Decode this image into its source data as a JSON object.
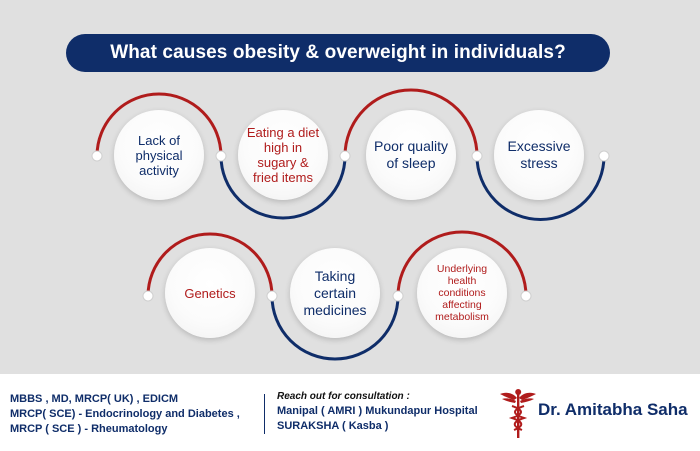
{
  "header": {
    "title": "What causes obesity & overweight in individuals?"
  },
  "causes": [
    {
      "label": "Lack of physical activity",
      "color": "#0f2d69"
    },
    {
      "label": "Eating a diet high in sugary & fried items",
      "color": "#b01c1c"
    },
    {
      "label": "Poor quality of sleep",
      "color": "#0f2d69"
    },
    {
      "label": "Excessive stress",
      "color": "#0f2d69"
    },
    {
      "label": "Genetics",
      "color": "#b01c1c"
    },
    {
      "label": "Taking certain medicines",
      "color": "#0f2d69"
    },
    {
      "label": "Underlying health conditions affecting metabolism",
      "color": "#b01c1c"
    }
  ],
  "footer": {
    "credentials": [
      "MBBS , MD, MRCP( UK) , EDICM",
      "MRCP( SCE) - Endocrinology and Diabetes ,",
      "MRCP ( SCE ) - Rheumatology"
    ],
    "contact_heading": "Reach out for consultation :",
    "contact_lines": [
      "Manipal ( AMRI ) Mukundapur Hospital",
      "SURAKSHA ( Kasba )"
    ],
    "doctor_name": "Dr. Amitabha Saha"
  },
  "colors": {
    "navy": "#0f2d69",
    "red": "#b01c1c",
    "panel": "#e0e0e0"
  }
}
